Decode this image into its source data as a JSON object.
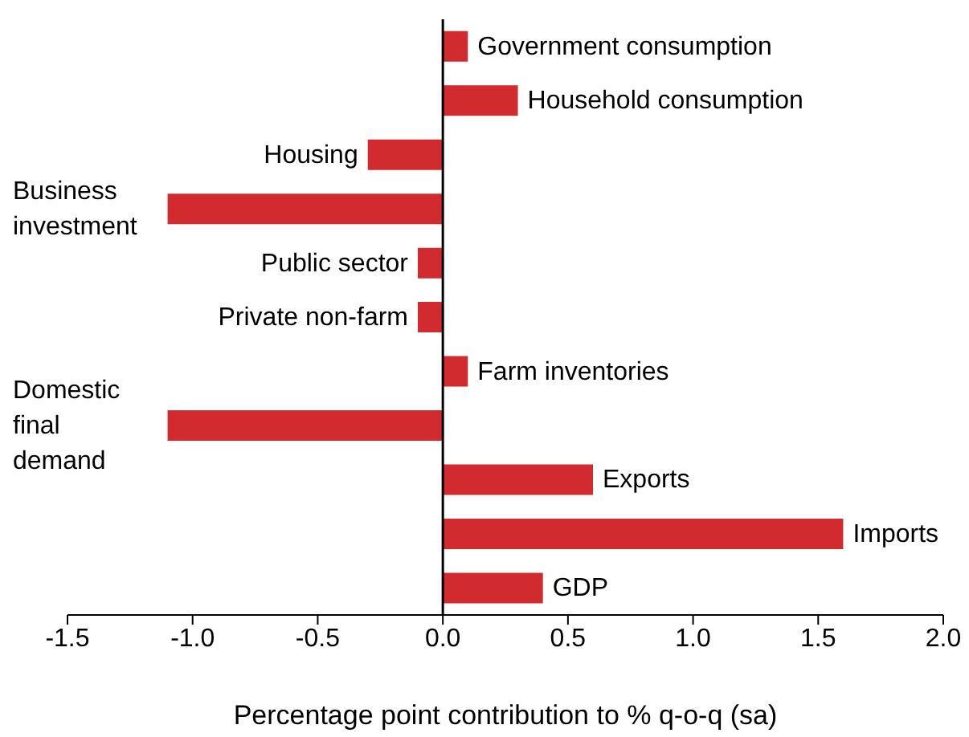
{
  "chart_data": {
    "type": "bar",
    "orientation": "horizontal",
    "xlabel": "Percentage point contribution to % q-o-q (sa)",
    "categories": [
      "Government consumption",
      "Household consumption",
      "Housing",
      "Business investment",
      "Public sector",
      "Private non-farm",
      "Farm inventories",
      "Domestic final demand",
      "Exports",
      "Imports",
      "GDP"
    ],
    "values": [
      0.1,
      0.3,
      -0.3,
      -1.1,
      -0.1,
      -0.1,
      0.1,
      -1.1,
      0.6,
      1.6,
      0.4
    ],
    "color": "#d22b2f",
    "xlim": [
      -1.5,
      2.0
    ],
    "xticks": [
      -1.5,
      {
        "value": -1,
        "label": "-1.0"
      },
      -0.5,
      {
        "value": 0,
        "label": "0.0"
      },
      0.5,
      {
        "value": 1,
        "label": "1.0"
      },
      1.5,
      {
        "value": 2,
        "label": "2.0"
      }
    ]
  }
}
